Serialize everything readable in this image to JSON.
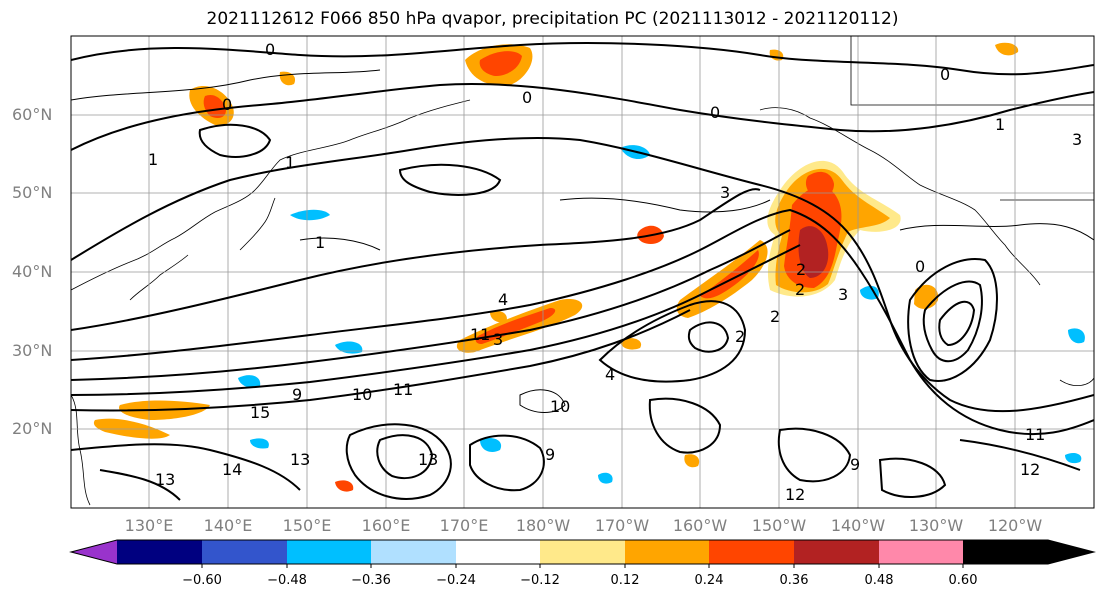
{
  "title": "2021112612 F066 850 hPa qvapor, precipitation PC (2021113012 - 2021120112)",
  "lat_labels": [
    "60°N",
    "50°N",
    "40°N",
    "30°N",
    "20°N"
  ],
  "lon_labels": [
    "130°E",
    "140°E",
    "150°E",
    "160°E",
    "170°E",
    "180°W",
    "170°W",
    "160°W",
    "150°W",
    "140°W",
    "130°W",
    "120°W"
  ],
  "colorbar": {
    "ticks": [
      "−0.60",
      "−0.48",
      "−0.36",
      "−0.24",
      "−0.12",
      "0.12",
      "0.24",
      "0.36",
      "0.48",
      "0.60"
    ],
    "colors": [
      "#9933cc",
      "#000080",
      "#3355cc",
      "#00bfff",
      "#b0e0ff",
      "#ffffff",
      "#ffe98a",
      "#ffa500",
      "#ff4500",
      "#b22222",
      "#ff88aa"
    ]
  },
  "contour_labels": [
    "0",
    "0",
    "0",
    "0",
    "0",
    "0",
    "1",
    "1",
    "1",
    "1",
    "2",
    "2",
    "2",
    "2",
    "3",
    "3",
    "3",
    "3",
    "4",
    "4",
    "9",
    "9",
    "9",
    "10",
    "10",
    "11",
    "11",
    "11",
    "12",
    "12",
    "13",
    "13",
    "13",
    "14",
    "15"
  ],
  "colors": {
    "contour": "#000000",
    "grid": "#999999",
    "coast": "#000000",
    "shade_orange": "#ffa500",
    "shade_red": "#ff4500",
    "shade_darkred": "#b22222",
    "shade_yellow": "#ffe98a",
    "shade_cyan": "#00bfff",
    "shade_lightblue": "#b0e0ff"
  }
}
